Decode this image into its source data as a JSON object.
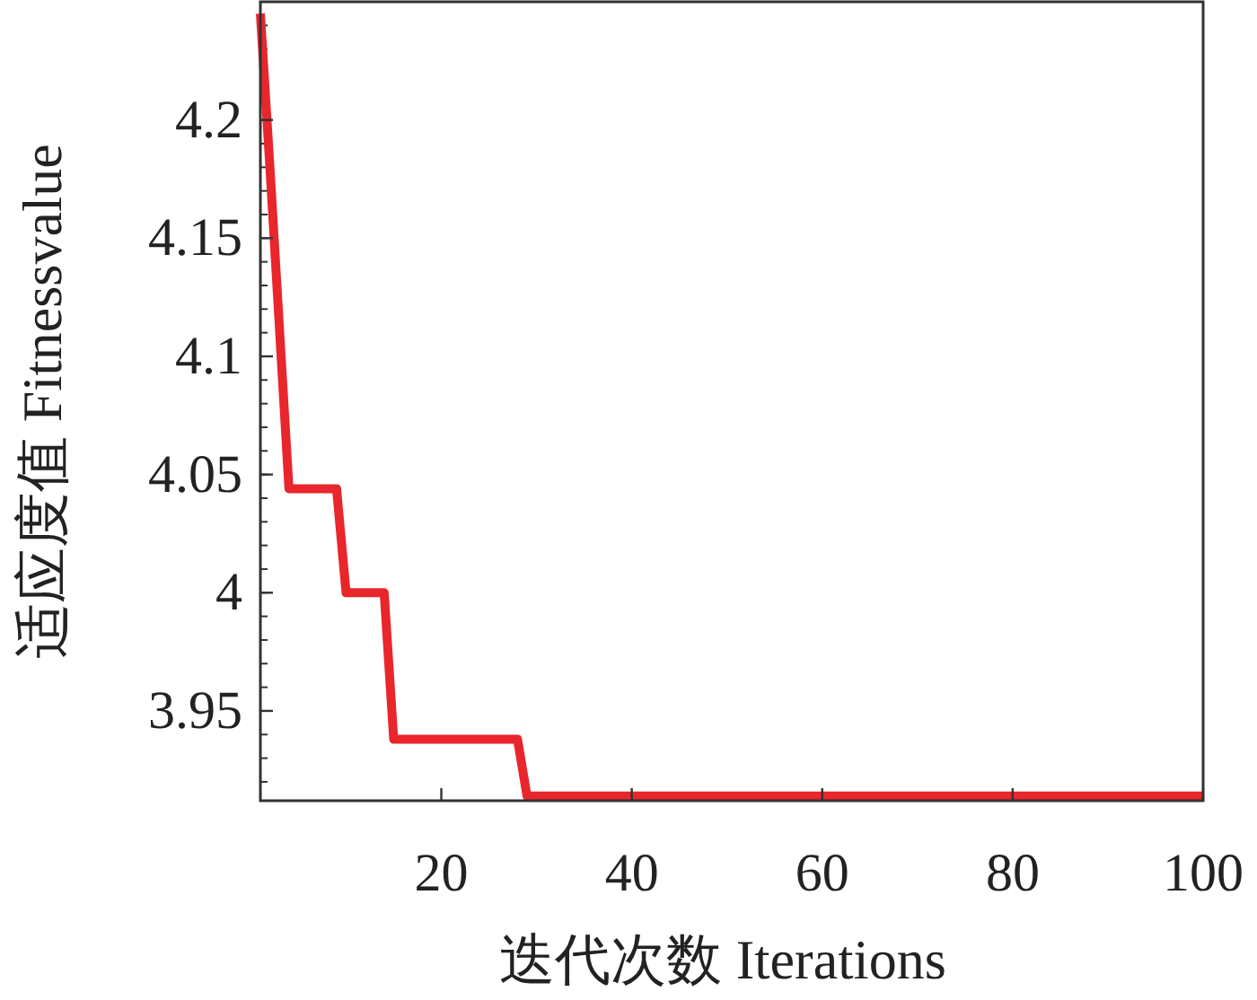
{
  "chart_data": {
    "type": "line",
    "xlabel": "迭代次数 Iterations",
    "ylabel": "适应度值 Fitnessvalue",
    "series": [
      {
        "color": "#e8262b",
        "x": [
          1,
          2,
          4,
          9,
          10,
          14,
          15,
          28,
          29,
          100
        ],
        "values": [
          4.245,
          4.18,
          4.044,
          4.044,
          4.0,
          4.0,
          3.938,
          3.938,
          3.914,
          3.914
        ]
      }
    ],
    "xlim": [
      1,
      100
    ],
    "xticks": [
      20,
      40,
      60,
      80,
      100
    ],
    "ylim": [
      3.912,
      4.25
    ],
    "yticks": [
      3.95,
      4,
      4.05,
      4.1,
      4.15,
      4.2
    ],
    "grid": false,
    "marker": "none",
    "line_style": "solid"
  }
}
